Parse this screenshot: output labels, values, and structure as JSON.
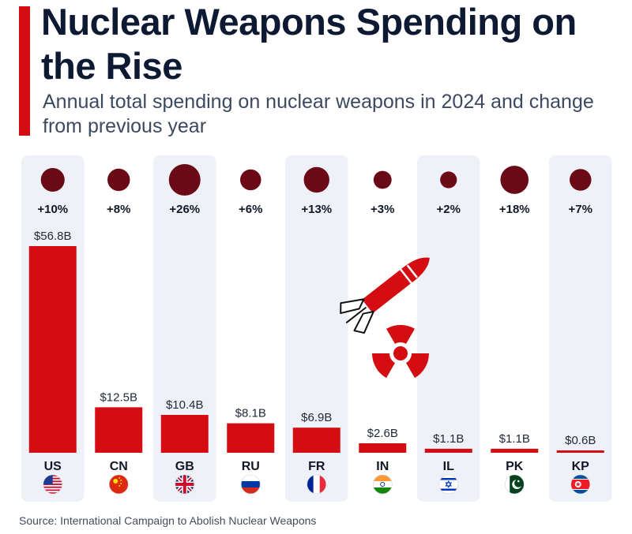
{
  "title": "Nuclear Weapons Spending on the Rise",
  "subtitle": "Annual total spending on nuclear weapons in 2024 and change from previous year",
  "source": "Source: International Campaign to Abolish Nuclear Weapons",
  "colors": {
    "accent": "#d40d12",
    "bar": "#d40d12",
    "bubble": "#6b0a16",
    "title": "#0e1a33",
    "panel": "#eef1f7"
  },
  "chart_data": {
    "type": "bar",
    "title": "Nuclear Weapons Spending on the Rise",
    "subtitle": "Annual total spending on nuclear weapons in 2024 and change from previous year",
    "unit": "billion USD",
    "ylim": [
      0,
      56.8
    ],
    "categories": [
      "US",
      "CN",
      "GB",
      "RU",
      "FR",
      "IN",
      "IL",
      "PK",
      "KP"
    ],
    "values": [
      56.8,
      12.5,
      10.4,
      8.1,
      6.9,
      2.6,
      1.1,
      1.1,
      0.6
    ],
    "value_labels": [
      "$56.8B",
      "$12.5B",
      "$10.4B",
      "$8.1B",
      "$6.9B",
      "$2.6B",
      "$1.1B",
      "$1.1B",
      "$0.6B"
    ],
    "change_pct": [
      10,
      8,
      26,
      6,
      13,
      3,
      2,
      18,
      7
    ],
    "change_labels": [
      "+10%",
      "+8%",
      "+26%",
      "+6%",
      "+13%",
      "+3%",
      "+2%",
      "+18%",
      "+7%"
    ],
    "flag_icons": [
      "us-flag-icon",
      "cn-flag-icon",
      "gb-flag-icon",
      "ru-flag-icon",
      "fr-flag-icon",
      "in-flag-icon",
      "il-flag-icon",
      "pk-flag-icon",
      "kp-flag-icon"
    ],
    "decoration": "missile-radiation-icon"
  }
}
